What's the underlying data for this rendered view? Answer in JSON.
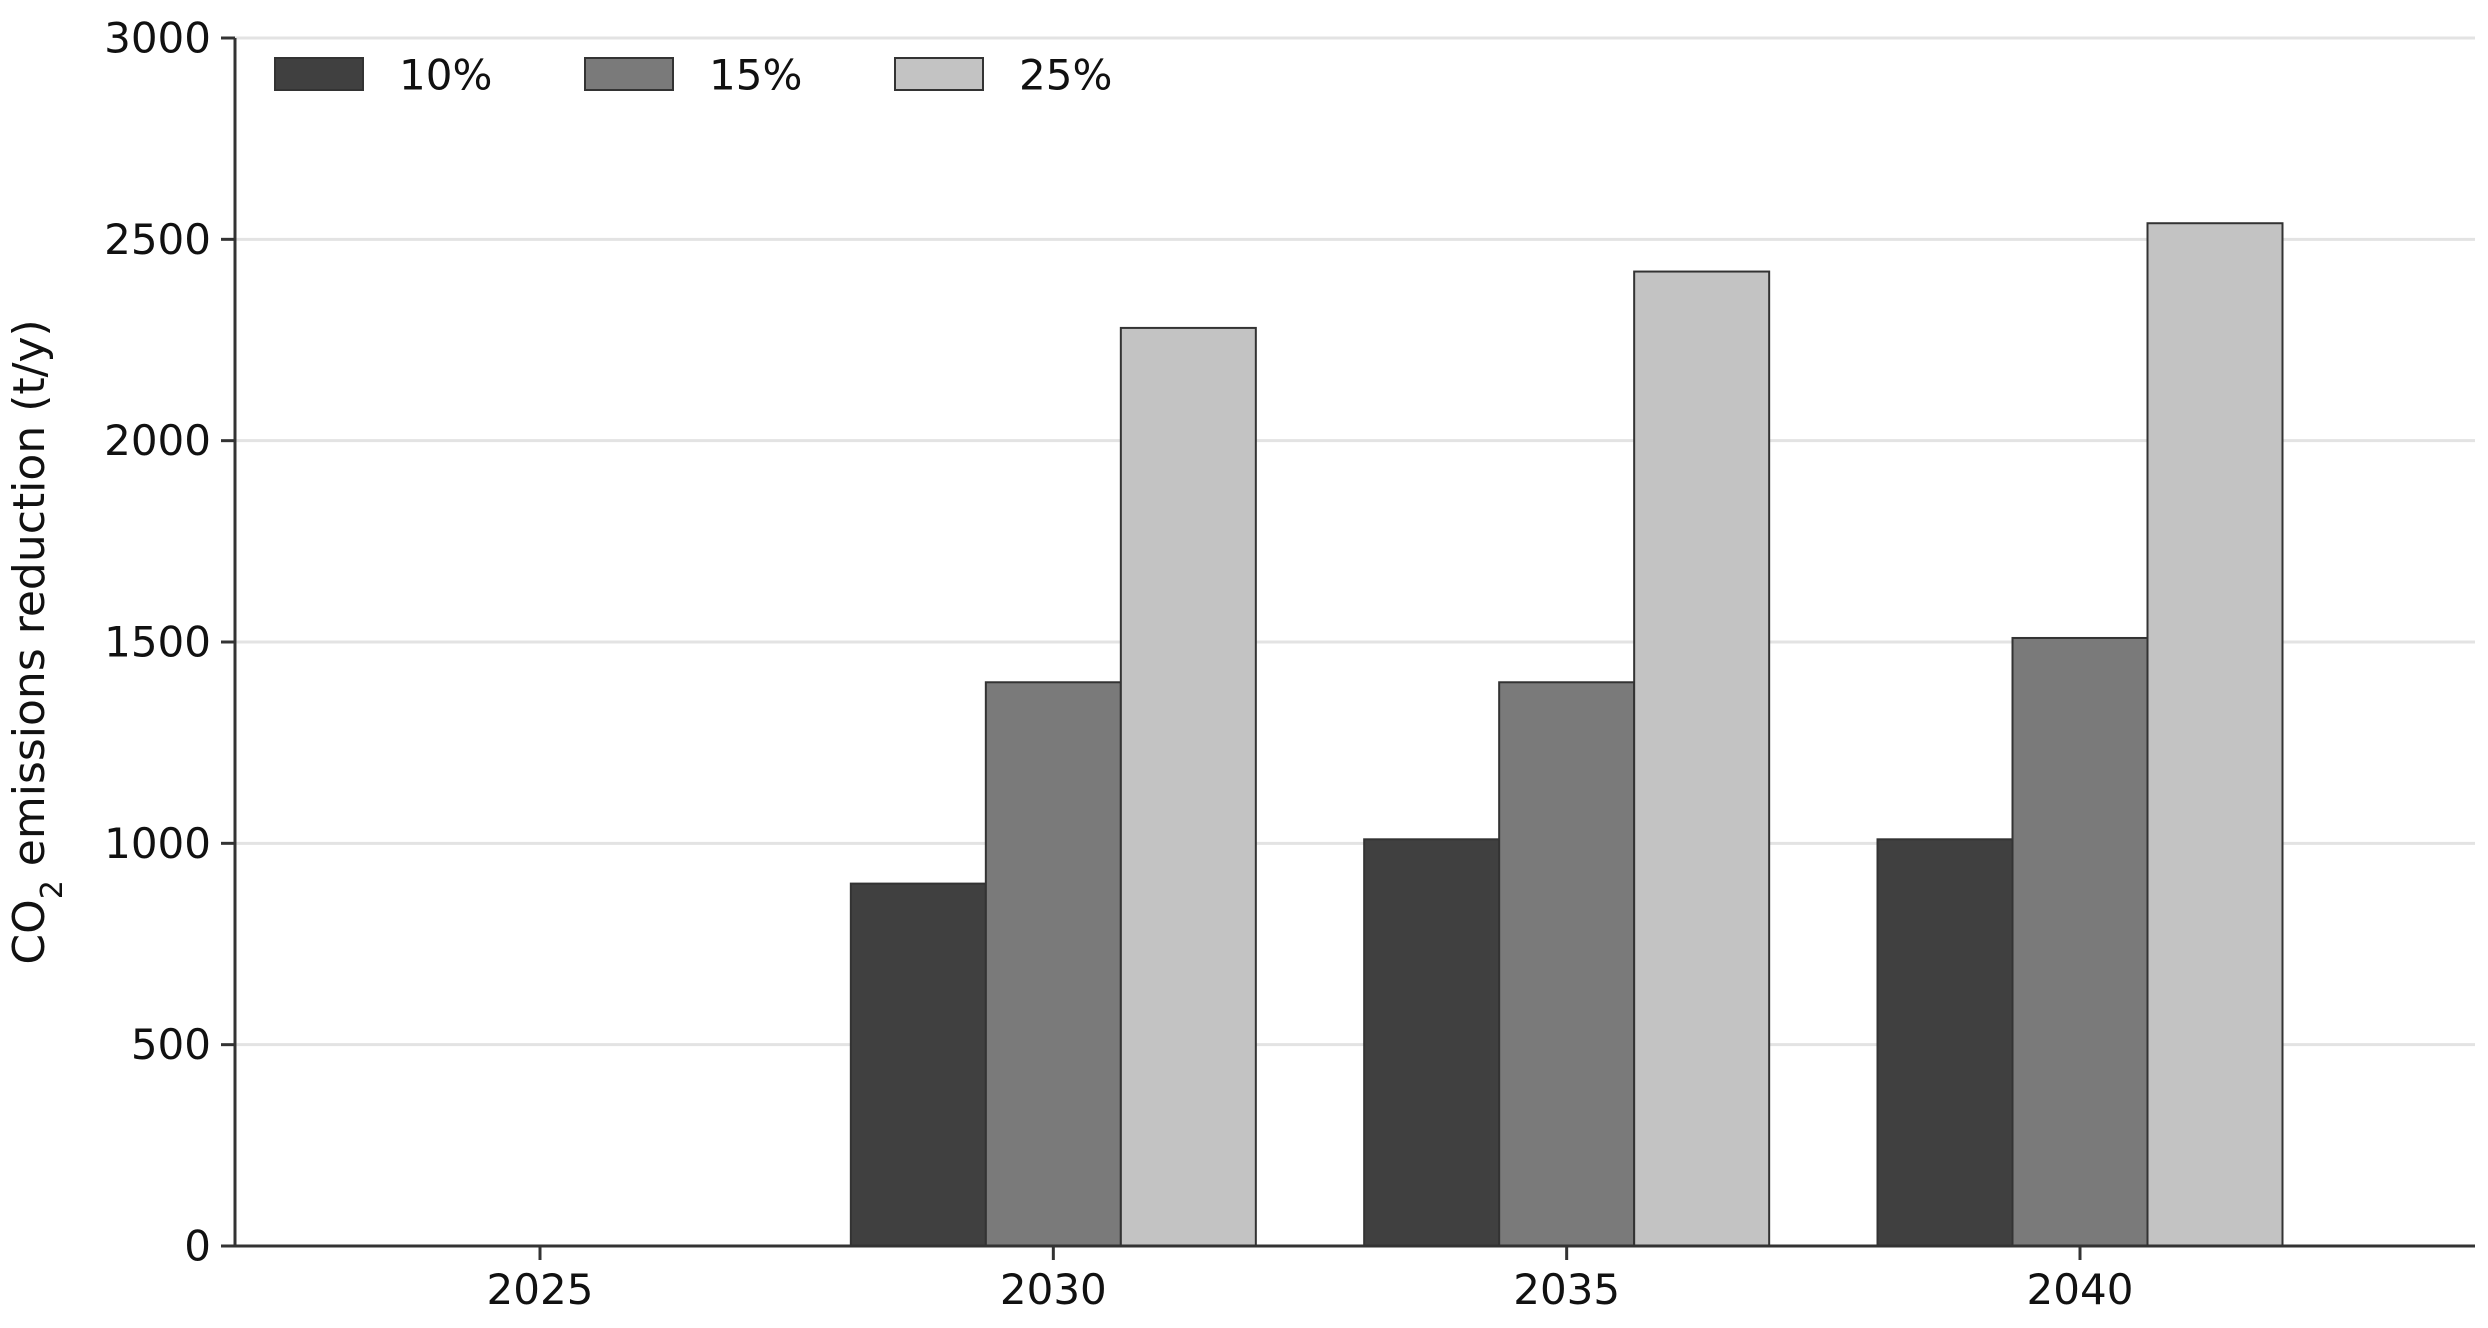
{
  "chart_data": {
    "type": "bar",
    "title": "",
    "xlabel": "",
    "ylabel": {
      "prefix": "CO",
      "subscript": "2",
      "suffix": " emissions reduction (t/y)"
    },
    "categories": [
      "2025",
      "2030",
      "2035",
      "2040"
    ],
    "series": [
      {
        "name": "10%",
        "color": "#404040",
        "values": [
          0,
          900,
          1010,
          1010
        ]
      },
      {
        "name": "15%",
        "color": "#7a7a7a",
        "values": [
          0,
          1400,
          1400,
          1510
        ]
      },
      {
        "name": "25%",
        "color": "#c3c3c3",
        "values": [
          0,
          2280,
          2420,
          2540
        ]
      }
    ],
    "ylim": [
      0,
      3000
    ],
    "yticks": [
      0,
      500,
      1000,
      1500,
      2000,
      2500,
      3000
    ],
    "grid": {
      "horizontal": true,
      "color": "#e3e3e3"
    },
    "legend": {
      "placement": "top-left",
      "orientation": "horizontal"
    },
    "bar_edge_color": "#333333"
  }
}
